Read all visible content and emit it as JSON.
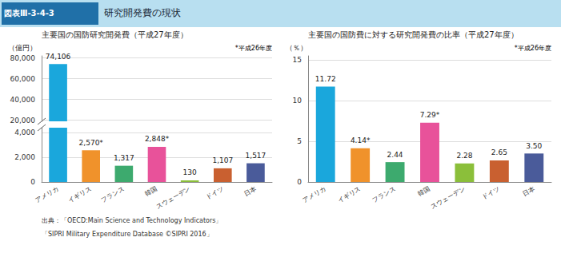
{
  "header": {
    "label": "図表Ⅲ-3-4-3",
    "title": "研究開発費の現状",
    "colors": [
      "#B8DFF0",
      "#2070A8"
    ]
  },
  "sources": [
    "出典：「OECD:Main Science and Technology Indicators」",
    "「SIPRI Military Expenditure Database ©SIPRI 2016」"
  ],
  "chart_data": [
    {
      "type": "bar",
      "title": "主要国の国防研究開発費（平成27年度）",
      "ylabel": "（億円）",
      "annotations": [
        "*平成26年度"
      ],
      "categories": [
        "アメリカ",
        "イギリス",
        "フランス",
        "韓国",
        "スウェーデン",
        "ドイツ",
        "日本"
      ],
      "values": [
        74106,
        2570,
        1317,
        2848,
        130,
        1107,
        1517
      ],
      "value_labels": [
        "74,106",
        "2,570*",
        "1,317",
        "2,848*",
        "130",
        "1,107",
        "1,517"
      ],
      "colors": [
        "#1AA7DC",
        "#F0922B",
        "#3DAA6E",
        "#E8529A",
        "#8BBF3A",
        "#C96030",
        "#4A5B9A"
      ],
      "ylim": [
        0,
        82000
      ],
      "ybreak": [
        4400,
        19000
      ],
      "yticks": [
        0,
        {
          "value": 2000,
          "label": "2,000"
        },
        {
          "value": 4000,
          "label": "4,000"
        },
        {
          "value": 20000,
          "label": "20,000"
        },
        {
          "value": 40000,
          "label": "40,000"
        },
        {
          "value": 60000,
          "label": "60,000"
        },
        {
          "value": 80000,
          "label": "80,000"
        }
      ],
      "grid": true,
      "data_labels": true
    },
    {
      "type": "bar",
      "title": "主要国の国防費に対する研究開発費の比率（平成27年度）",
      "ylabel": "（％）",
      "annotations": [
        "*平成26年度"
      ],
      "categories": [
        "アメリカ",
        "イギリス",
        "フランス",
        "韓国",
        "スウェーデン",
        "ドイツ",
        "日本"
      ],
      "values": [
        11.72,
        4.14,
        2.44,
        7.29,
        2.28,
        2.65,
        3.5
      ],
      "value_labels": [
        "11.72",
        "4.14*",
        "2.44",
        "7.29*",
        "2.28",
        "2.65",
        "3.50"
      ],
      "colors": [
        "#1AA7DC",
        "#F0922B",
        "#3DAA6E",
        "#E8529A",
        "#8BBF3A",
        "#C96030",
        "#4A5B9A"
      ],
      "ylim": [
        0,
        15.5
      ],
      "yticks": [
        0,
        5,
        10,
        15
      ],
      "grid": true,
      "data_labels": true
    }
  ]
}
